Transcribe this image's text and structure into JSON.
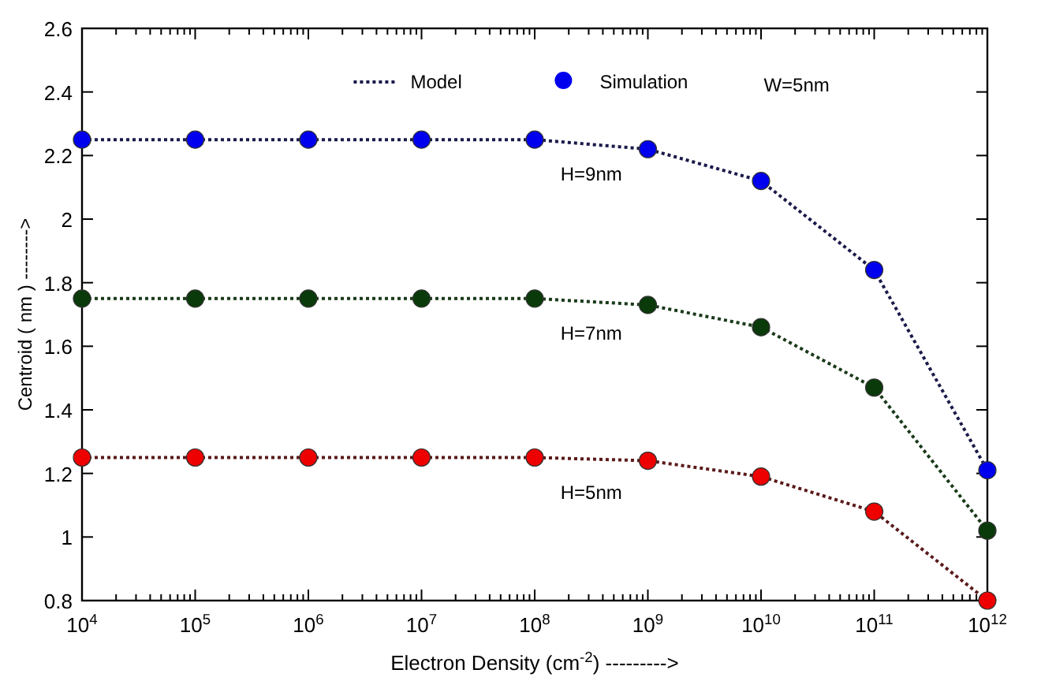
{
  "chart_data": {
    "type": "line",
    "xlabel": "Electron Density (cm$^{-2}$)   --------->",
    "ylabel": "Centroid ( nm )   -------->",
    "x": [
      10000,
      100000,
      1000000,
      10000000,
      100000000,
      1000000000,
      10000000000,
      100000000000,
      1000000000000
    ],
    "series": [
      {
        "name": "Model",
        "color": "#1a1a4a",
        "line_style": "dotted",
        "values": [
          2.25,
          2.25,
          2.25,
          2.25,
          2.25,
          2.22,
          2.12,
          1.84,
          1.21
        ]
      },
      {
        "color": "#1a3a1a",
        "line_style": "dotted",
        "values": [
          1.75,
          1.75,
          1.75,
          1.75,
          1.75,
          1.73,
          1.66,
          1.47,
          1.02
        ]
      },
      {
        "color": "#5a1a1a",
        "line_style": "dotted",
        "values": [
          1.25,
          1.25,
          1.25,
          1.25,
          1.25,
          1.24,
          1.19,
          1.08,
          0.8
        ]
      },
      {
        "name": "Simulation",
        "type": "scatter",
        "color": "#0000ee",
        "values": [
          2.25,
          2.25,
          2.25,
          2.25,
          2.25,
          2.22,
          2.12,
          1.84,
          1.21
        ]
      },
      {
        "type": "scatter",
        "color": "#0a3a0a",
        "values": [
          1.75,
          1.75,
          1.75,
          1.75,
          1.75,
          1.73,
          1.66,
          1.47,
          1.02
        ]
      },
      {
        "type": "scatter",
        "color": "#ee0000",
        "values": [
          1.25,
          1.25,
          1.25,
          1.25,
          1.25,
          1.24,
          1.19,
          1.08,
          0.8
        ]
      }
    ],
    "xlim": [
      10000,
      1000000000000
    ],
    "xticks": [
      {
        "value": 10000,
        "label": "10$^{4}$"
      },
      {
        "value": 100000,
        "label": "10$^{5}$"
      },
      {
        "value": 1000000,
        "label": "10$^{6}$"
      },
      {
        "value": 10000000,
        "label": "10$^{7}$"
      },
      {
        "value": 100000000,
        "label": "10$^{8}$"
      },
      {
        "value": 1000000000,
        "label": "10$^{9}$"
      },
      {
        "value": 10000000000,
        "label": "10$^{10}$"
      },
      {
        "value": 100000000000,
        "label": "10$^{11}$"
      },
      {
        "value": 1000000000000,
        "label": "10$^{12}$"
      }
    ],
    "ylim": [
      0.8,
      2.6
    ],
    "yticks": [
      0.8,
      1,
      1.2,
      1.4,
      1.6,
      1.8,
      2,
      2.2,
      2.4,
      2.6
    ],
    "log": "x",
    "legend": "top",
    "annotations": [
      "H=9nm",
      "H=7nm",
      "H=5nm",
      "W=5nm"
    ]
  }
}
